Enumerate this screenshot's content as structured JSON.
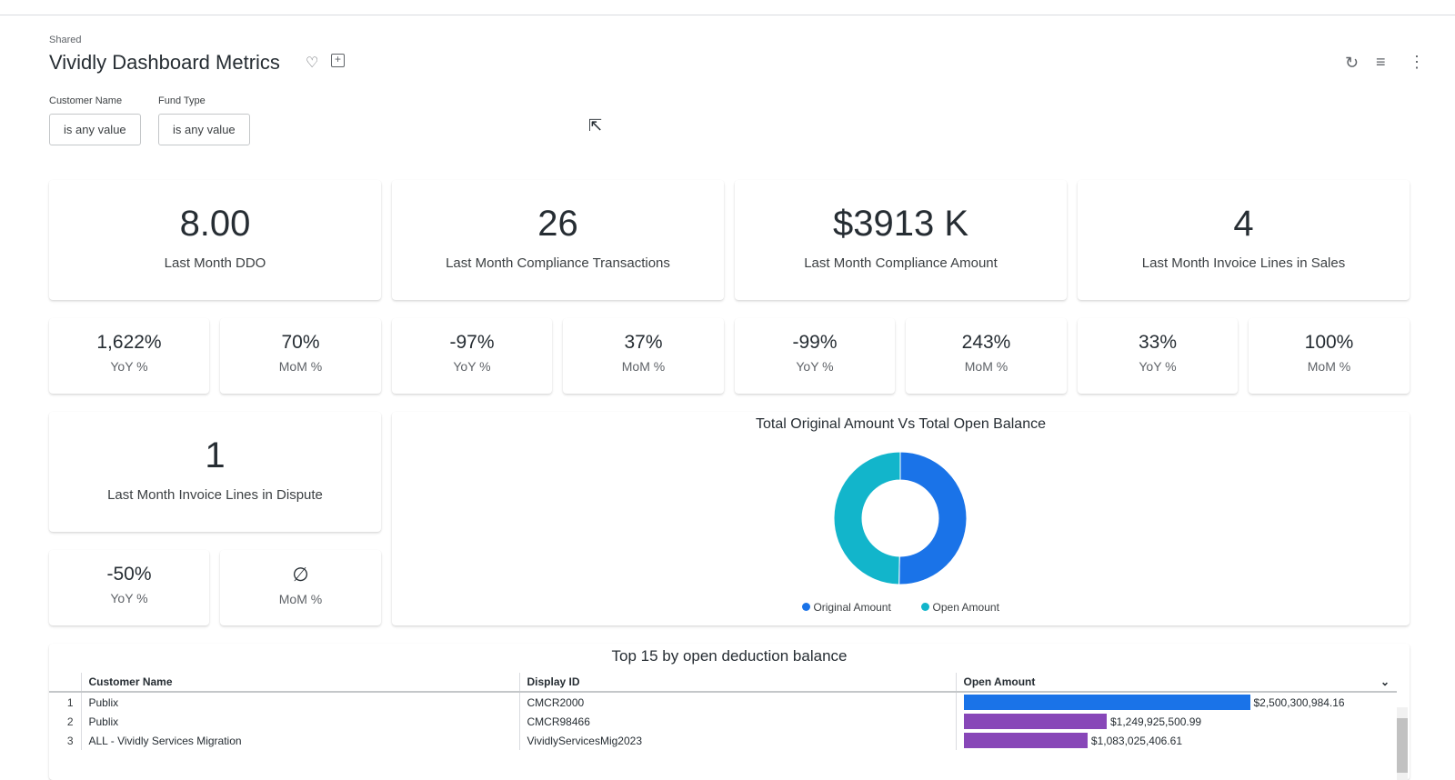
{
  "header": {
    "breadcrumb": "Shared",
    "title": "Vividly Dashboard Metrics"
  },
  "filters": [
    {
      "label": "Customer Name",
      "value": "is any value"
    },
    {
      "label": "Fund Type",
      "value": "is any value"
    }
  ],
  "kpis": [
    {
      "value": "8.00",
      "label": "Last Month DDO",
      "yoy": "1,622%",
      "mom": "70%"
    },
    {
      "value": "26",
      "label": "Last Month Compliance Transactions",
      "yoy": "-97%",
      "mom": "37%"
    },
    {
      "value": "$3913 K",
      "label": "Last Month Compliance Amount",
      "yoy": "-99%",
      "mom": "243%"
    },
    {
      "value": "4",
      "label": "Last Month Invoice Lines in Sales",
      "yoy": "33%",
      "mom": "100%"
    },
    {
      "value": "1",
      "label": "Last Month Invoice Lines in Dispute",
      "yoy": "-50%",
      "mom": "∅"
    }
  ],
  "yoy_label": "YoY %",
  "mom_label": "MoM %",
  "chart_data": {
    "type": "pie",
    "title": "Total Original Amount Vs Total Open Balance",
    "donut": true,
    "legend": "bottom",
    "series": [
      {
        "name": "Original Amount",
        "value": 50.3,
        "color": "#1a73e8"
      },
      {
        "name": "Open Amount",
        "value": 49.7,
        "color": "#12b5cb"
      }
    ]
  },
  "table": {
    "title": "Top 15 by open deduction balance",
    "columns": [
      "Customer Name",
      "Display ID",
      "Open Amount"
    ],
    "rows": [
      {
        "n": "1",
        "customer": "Publix",
        "id": "CMCR2000",
        "amount": "$2,500,300,984.16",
        "value": 2500300984.16,
        "color": "#1a73e8"
      },
      {
        "n": "2",
        "customer": "Publix",
        "id": "CMCR98466",
        "amount": "$1,249,925,500.99",
        "value": 1249925500.99,
        "color": "#8847b8"
      },
      {
        "n": "3",
        "customer": "ALL - Vividly Services Migration",
        "id": "VividlyServicesMig2023",
        "amount": "$1,083,025,406.61",
        "value": 1083025406.61,
        "color": "#8847b8"
      }
    ]
  }
}
